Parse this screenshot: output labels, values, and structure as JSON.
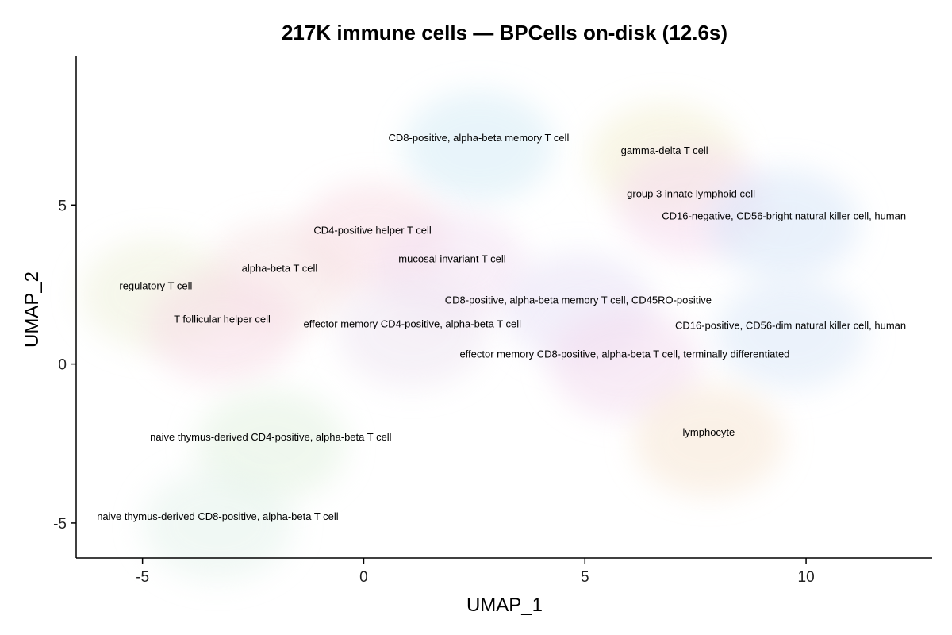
{
  "chart_data": {
    "type": "scatter",
    "title": "217K immune cells — BPCells on-disk (12.6s)",
    "xlabel": "UMAP_1",
    "ylabel": "UMAP_2",
    "xlim": [
      -6.5,
      12.85
    ],
    "ylim": [
      -6.1,
      9.7
    ],
    "xticks": [
      -5,
      0,
      5,
      10
    ],
    "yticks": [
      -5,
      0,
      5
    ],
    "grid": false,
    "legend": "none",
    "point_opacity": "very low",
    "cluster_labels": [
      {
        "label": "CD8-positive, alpha-beta memory T cell",
        "x": 2.6,
        "y": 7.1,
        "color": "#d6ecf6"
      },
      {
        "label": "gamma-delta T cell",
        "x": 6.8,
        "y": 6.7,
        "color": "#f3efd2"
      },
      {
        "label": "group 3 innate lymphoid cell",
        "x": 7.4,
        "y": 5.35,
        "color": "#f6dcef"
      },
      {
        "label": "CD16-negative, CD56-bright natural killer cell, human",
        "x": 9.5,
        "y": 4.65,
        "color": "#d8e6f8"
      },
      {
        "label": "CD4-positive helper T cell",
        "x": 0.2,
        "y": 4.2,
        "color": "#f8dde4"
      },
      {
        "label": "mucosal invariant T cell",
        "x": 2.0,
        "y": 3.3,
        "color": "#f3e2f3"
      },
      {
        "label": "alpha-beta T cell",
        "x": -1.9,
        "y": 3.0,
        "color": "#f6e4e4"
      },
      {
        "label": "regulatory T cell",
        "x": -4.7,
        "y": 2.45,
        "color": "#eff1dc"
      },
      {
        "label": "CD8-positive, alpha-beta memory T cell, CD45RO-positive",
        "x": 4.85,
        "y": 2.0,
        "color": "#e8e2f6"
      },
      {
        "label": "T follicular helper cell",
        "x": -3.2,
        "y": 1.4,
        "color": "#f7dde6"
      },
      {
        "label": "effector memory CD4-positive, alpha-beta T cell",
        "x": 1.1,
        "y": 1.25,
        "color": "#efe6f2"
      },
      {
        "label": "CD16-positive, CD56-dim natural killer cell, human",
        "x": 9.65,
        "y": 1.2,
        "color": "#dce8f8"
      },
      {
        "label": "effector memory CD8-positive, alpha-beta T cell, terminally differentiated",
        "x": 5.9,
        "y": 0.3,
        "color": "#f3dcef"
      },
      {
        "label": "lymphocyte",
        "x": 7.8,
        "y": -2.15,
        "color": "#f7e6d4"
      },
      {
        "label": "naive thymus-derived CD4-positive, alpha-beta T cell",
        "x": -2.1,
        "y": -2.3,
        "color": "#e3f2e1"
      },
      {
        "label": "naive thymus-derived CD8-positive, alpha-beta T cell",
        "x": -3.3,
        "y": -4.8,
        "color": "#e5f3ec"
      }
    ]
  }
}
